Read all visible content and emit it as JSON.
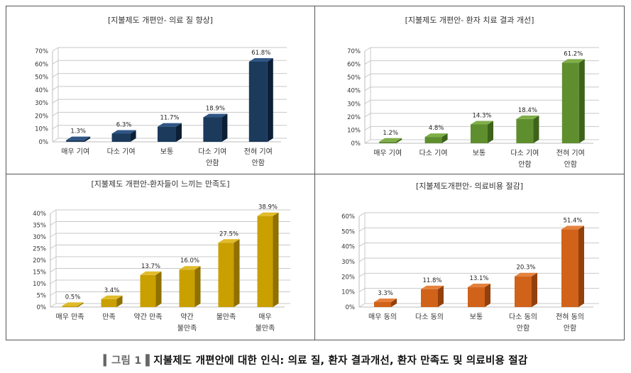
{
  "caption": {
    "label": "▍그림 1▐",
    "text": "지불제도 개편안에 대한 인식: 의료 질, 환자 결과개선, 환자 만족도 및 의료비용 절감"
  },
  "chart_data": [
    {
      "type": "bar",
      "title": "[지불제도 개편안- 의료 질 향상]",
      "categories": [
        "매우 기여",
        "다소 기여",
        "보통",
        "다소 기여\n안함",
        "전혀 기여\n안함"
      ],
      "values": [
        1.3,
        6.3,
        11.7,
        18.9,
        61.8
      ],
      "labels": [
        "1.3%",
        "6.3%",
        "11.7%",
        "18.9%",
        "61.8%"
      ],
      "ylim": [
        0,
        70
      ],
      "yticks": [
        "0%",
        "10%",
        "20%",
        "30%",
        "40%",
        "50%",
        "60%",
        "70%"
      ],
      "grid": true,
      "colors": {
        "front": "#1b3a5c",
        "side": "#0c1f36",
        "top": "#2f5685"
      }
    },
    {
      "type": "bar",
      "title": "[지불제도 개편안- 환자 치료 결과 개선]",
      "categories": [
        "매우 기여",
        "다소 기여",
        "보통",
        "다소 기여\n안함",
        "전혀 기여\n안함"
      ],
      "values": [
        1.2,
        4.8,
        14.3,
        18.4,
        61.2
      ],
      "labels": [
        "1.2%",
        "4.8%",
        "14.3%",
        "18.4%",
        "61.2%"
      ],
      "ylim": [
        0,
        70
      ],
      "yticks": [
        "0%",
        "10%",
        "20%",
        "30%",
        "40%",
        "50%",
        "60%",
        "70%"
      ],
      "grid": true,
      "colors": {
        "front": "#5f8e2f",
        "side": "#3d631a",
        "top": "#7fae4a"
      }
    },
    {
      "type": "bar",
      "title": "[지불제도 개편안-환자들이 느끼는 만족도]",
      "categories": [
        "매우 만족",
        "만족",
        "약간 만족",
        "약간\n불만족",
        "불만족",
        "매우\n불만족"
      ],
      "values": [
        0.5,
        3.4,
        13.7,
        16.0,
        27.5,
        38.9
      ],
      "labels": [
        "0.5%",
        "3.4%",
        "13.7%",
        "16.0%",
        "27.5%",
        "38.9%"
      ],
      "ylim": [
        0,
        40
      ],
      "yticks": [
        "0%",
        "5%",
        "10%",
        "15%",
        "20%",
        "25%",
        "30%",
        "35%",
        "40%"
      ],
      "grid": true,
      "colors": {
        "front": "#c9a000",
        "side": "#8f7000",
        "top": "#e0bb2a"
      }
    },
    {
      "type": "bar",
      "title": "[지불제도개편안- 의료비용 절감]",
      "categories": [
        "매우 동의",
        "다소 동의",
        "보통",
        "다소 동의\n안함",
        "전혀 동의\n안함"
      ],
      "values": [
        3.3,
        11.8,
        13.1,
        20.3,
        51.4
      ],
      "labels": [
        "3.3%",
        "11.8%",
        "13.1%",
        "20.3%",
        "51.4%"
      ],
      "ylim": [
        0,
        60
      ],
      "yticks": [
        "0%",
        "10%",
        "20%",
        "30%",
        "40%",
        "50%",
        "60%"
      ],
      "grid": true,
      "colors": {
        "front": "#d0621a",
        "side": "#93400c",
        "top": "#e5813c"
      }
    }
  ]
}
